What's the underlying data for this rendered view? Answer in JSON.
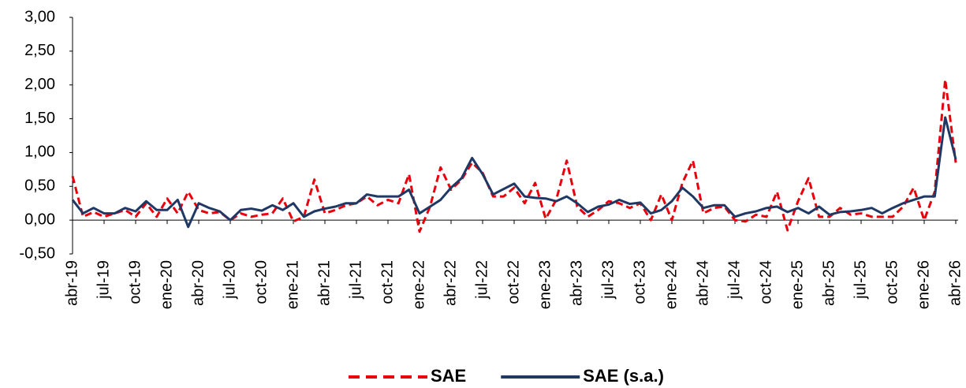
{
  "chart_data": {
    "type": "line",
    "categories": [
      "abr-19",
      null,
      null,
      "jul-19",
      null,
      null,
      "oct-19",
      null,
      null,
      "ene-20",
      null,
      null,
      "abr-20",
      null,
      null,
      "jul-20",
      null,
      null,
      "oct-20",
      null,
      null,
      "ene-21",
      null,
      null,
      "abr-21",
      null,
      null,
      "jul-21",
      null,
      null,
      "oct-21",
      null,
      null,
      "ene-22",
      null,
      null,
      "abr-22",
      null,
      null,
      "jul-22",
      null,
      null,
      "oct-22",
      null,
      null,
      "ene-23",
      null,
      null,
      "abr-23",
      null,
      null,
      "jul-23",
      null,
      null,
      "oct-23",
      null,
      null,
      "ene-24",
      null,
      null,
      "abr-24",
      null,
      null,
      "jul-24",
      null,
      null,
      "oct-24",
      null,
      null,
      "ene-25",
      null,
      null,
      "abr-25",
      null,
      null,
      "jul-25",
      null,
      null,
      "oct-25",
      null,
      null,
      "ene-26",
      null,
      null,
      "abr-26"
    ],
    "series": [
      {
        "name": "SAE",
        "color": "#e8000b",
        "dashed": true,
        "values": [
          0.65,
          0.05,
          0.12,
          0.05,
          0.1,
          0.15,
          0.05,
          0.25,
          0.05,
          0.32,
          0.1,
          0.42,
          0.15,
          0.1,
          0.12,
          0,
          0.1,
          0.05,
          0.08,
          0.1,
          0.32,
          -0.02,
          0.05,
          0.6,
          0.1,
          0.15,
          0.22,
          0.25,
          0.35,
          0.22,
          0.3,
          0.25,
          0.68,
          -0.17,
          0.2,
          0.78,
          0.45,
          0.6,
          0.85,
          0.7,
          0.35,
          0.35,
          0.48,
          0.25,
          0.55,
          0.02,
          0.3,
          0.88,
          0.2,
          0.05,
          0.15,
          0.28,
          0.25,
          0.18,
          0.25,
          0,
          0.38,
          0,
          0.55,
          0.88,
          0.1,
          0.18,
          0.2,
          0,
          -0.02,
          0.08,
          0.05,
          0.42,
          -0.15,
          0.28,
          0.62,
          0.05,
          0.05,
          0.18,
          0.08,
          0.1,
          0.05,
          0.05,
          0.05,
          0.2,
          0.48,
          0,
          0.42,
          2.08,
          0.85
        ]
      },
      {
        "name": "SAE (s.a.)",
        "color": "#1f3864",
        "dashed": false,
        "values": [
          0.3,
          0.1,
          0.18,
          0.1,
          0.1,
          0.18,
          0.13,
          0.28,
          0.15,
          0.15,
          0.3,
          -0.1,
          0.25,
          0.18,
          0.13,
          0,
          0.15,
          0.17,
          0.14,
          0.22,
          0.15,
          0.25,
          0.05,
          0.13,
          0.17,
          0.2,
          0.25,
          0.25,
          0.38,
          0.35,
          0.35,
          0.35,
          0.45,
          0.1,
          0.2,
          0.3,
          0.48,
          0.62,
          0.92,
          0.68,
          0.38,
          0.46,
          0.54,
          0.35,
          0.33,
          0.32,
          0.28,
          0.35,
          0.25,
          0.12,
          0.2,
          0.23,
          0.3,
          0.24,
          0.26,
          0.1,
          0.15,
          0.28,
          0.48,
          0.35,
          0.18,
          0.22,
          0.22,
          0.05,
          0.1,
          0.13,
          0.18,
          0.2,
          0.12,
          0.18,
          0.1,
          0.2,
          0.08,
          0.12,
          0.13,
          0.15,
          0.18,
          0.1,
          0.18,
          0.25,
          0.3,
          0.35,
          0.35,
          1.52,
          0.9
        ]
      }
    ],
    "ylim": [
      -0.5,
      3.0
    ],
    "yticks": [
      {
        "value": -0.5,
        "label": "-0,50"
      },
      {
        "value": 0,
        "label": "0,00"
      },
      {
        "value": 0.5,
        "label": "0,50"
      },
      {
        "value": 1.0,
        "label": "1,00"
      },
      {
        "value": 1.5,
        "label": "1,50"
      },
      {
        "value": 2.0,
        "label": "2,00"
      },
      {
        "value": 2.5,
        "label": "2,50"
      },
      {
        "value": 3.0,
        "label": "3,00"
      }
    ],
    "legend": "bottom"
  }
}
